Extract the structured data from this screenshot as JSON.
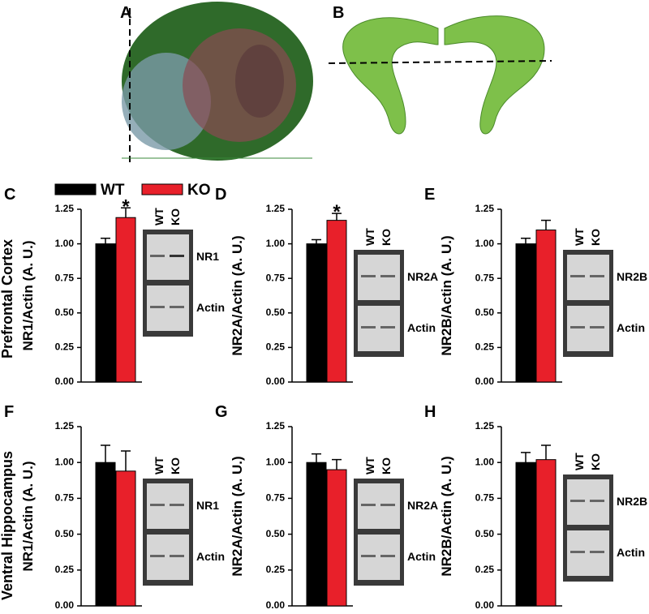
{
  "panels_top": [
    "A",
    "B"
  ],
  "legend": {
    "labels": [
      "WT",
      "KO"
    ],
    "colors": [
      "#000000",
      "#e8202a"
    ]
  },
  "rows": [
    "Prefrontal Cortex",
    "Ventral Hippocampus"
  ],
  "chart_data": [
    {
      "type": "bar",
      "panel": "C",
      "ylabel": "NR1/Actin (A. U.)",
      "values": [
        1.0,
        1.19
      ],
      "errors": [
        0.04,
        0.07
      ],
      "annotations": [
        null,
        "*"
      ],
      "ylim": [
        0,
        1.25
      ],
      "yticks": [
        {
          "value": 0,
          "label": "0.00"
        },
        {
          "value": 0.25,
          "label": "0.25"
        },
        {
          "value": 0.5,
          "label": "0.50"
        },
        {
          "value": 0.75,
          "label": "0.75"
        },
        {
          "value": 1,
          "label": "1.00"
        },
        {
          "value": 1.25,
          "label": "1.25"
        }
      ],
      "blot": {
        "lanes": [
          "WT",
          "KO"
        ],
        "bands": [
          "NR1",
          "Actin"
        ]
      }
    },
    {
      "type": "bar",
      "panel": "D",
      "ylabel": "NR2A/Actin (A. U.)",
      "values": [
        1.0,
        1.17
      ],
      "errors": [
        0.03,
        0.05
      ],
      "annotations": [
        null,
        "*"
      ],
      "ylim": [
        0,
        1.25
      ],
      "yticks": [
        {
          "value": 0,
          "label": "0.00"
        },
        {
          "value": 0.25,
          "label": "0.25"
        },
        {
          "value": 0.5,
          "label": "0.50"
        },
        {
          "value": 0.75,
          "label": "0.75"
        },
        {
          "value": 1,
          "label": "1.00"
        },
        {
          "value": 1.25,
          "label": "1.25"
        }
      ],
      "blot": {
        "lanes": [
          "WT",
          "KO"
        ],
        "bands": [
          "NR2A",
          "Actin"
        ]
      }
    },
    {
      "type": "bar",
      "panel": "E",
      "ylabel": "NR2B/Actin (A. U.)",
      "values": [
        1.0,
        1.1
      ],
      "errors": [
        0.04,
        0.07
      ],
      "annotations": [
        null,
        null
      ],
      "ylim": [
        0,
        1.25
      ],
      "yticks": [
        {
          "value": 0,
          "label": "0.00"
        },
        {
          "value": 0.25,
          "label": "0.25"
        },
        {
          "value": 0.5,
          "label": "0.50"
        },
        {
          "value": 0.75,
          "label": "0.75"
        },
        {
          "value": 1,
          "label": "1.00"
        },
        {
          "value": 1.25,
          "label": "1.25"
        }
      ],
      "blot": {
        "lanes": [
          "WT",
          "KO"
        ],
        "bands": [
          "NR2B",
          "Actin"
        ]
      }
    },
    {
      "type": "bar",
      "panel": "F",
      "ylabel": "NR1/Actin (A. U.)",
      "values": [
        1.0,
        0.94
      ],
      "errors": [
        0.12,
        0.14
      ],
      "annotations": [
        null,
        null
      ],
      "ylim": [
        0,
        1.25
      ],
      "yticks": [
        {
          "value": 0,
          "label": "0.00"
        },
        {
          "value": 0.25,
          "label": "0.25"
        },
        {
          "value": 0.5,
          "label": "0.50"
        },
        {
          "value": 0.75,
          "label": "0.75"
        },
        {
          "value": 1,
          "label": "1.00"
        },
        {
          "value": 1.25,
          "label": "1.25"
        }
      ],
      "blot": {
        "lanes": [
          "WT",
          "KO"
        ],
        "bands": [
          "NR1",
          "Actin"
        ]
      }
    },
    {
      "type": "bar",
      "panel": "G",
      "ylabel": "NR2A/Actin (A. U.)",
      "values": [
        1.0,
        0.95
      ],
      "errors": [
        0.06,
        0.07
      ],
      "annotations": [
        null,
        null
      ],
      "ylim": [
        0,
        1.25
      ],
      "yticks": [
        {
          "value": 0,
          "label": "0.00"
        },
        {
          "value": 0.25,
          "label": "0.25"
        },
        {
          "value": 0.5,
          "label": "0.50"
        },
        {
          "value": 0.75,
          "label": "0.75"
        },
        {
          "value": 1,
          "label": "1.00"
        },
        {
          "value": 1.25,
          "label": "1.25"
        }
      ],
      "blot": {
        "lanes": [
          "WT",
          "KO"
        ],
        "bands": [
          "NR2A",
          "Actin"
        ]
      }
    },
    {
      "type": "bar",
      "panel": "H",
      "ylabel": "NR2B/Actin (A. U.)",
      "values": [
        1.0,
        1.02
      ],
      "errors": [
        0.07,
        0.1
      ],
      "annotations": [
        null,
        null
      ],
      "ylim": [
        0,
        1.25
      ],
      "yticks": [
        {
          "value": 0,
          "label": "0.00"
        },
        {
          "value": 0.25,
          "label": "0.25"
        },
        {
          "value": 0.5,
          "label": "0.50"
        },
        {
          "value": 0.75,
          "label": "0.75"
        },
        {
          "value": 1,
          "label": "1.00"
        },
        {
          "value": 1.25,
          "label": "1.25"
        }
      ],
      "blot": {
        "lanes": [
          "WT",
          "KO"
        ],
        "bands": [
          "NR2B",
          "Actin"
        ]
      }
    }
  ]
}
